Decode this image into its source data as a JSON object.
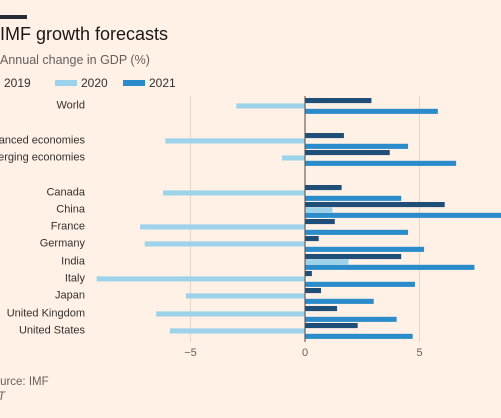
{
  "header": {
    "title": "IMF growth forecasts",
    "subtitle": "Annual change in GDP (%)"
  },
  "legend": [
    {
      "name": "2019",
      "color": "#1f4e79"
    },
    {
      "name": "2020",
      "color": "#9dd3ea"
    },
    {
      "name": "2021",
      "color": "#2b8ccc"
    }
  ],
  "footer": {
    "source": "Source: IMF",
    "brand": "FT"
  },
  "chart_data": {
    "type": "bar",
    "orientation": "horizontal",
    "categories": [
      "World",
      "Advanced economies",
      "Emerging economies",
      "Canada",
      "China",
      "France",
      "Germany",
      "India",
      "Italy",
      "Japan",
      "United Kingdom",
      "United States"
    ],
    "series": [
      {
        "name": "2019",
        "values": [
          2.9,
          1.7,
          3.7,
          1.6,
          6.1,
          1.3,
          0.6,
          4.2,
          0.3,
          0.7,
          1.4,
          2.3
        ]
      },
      {
        "name": "2020",
        "values": [
          -3.0,
          -6.1,
          -1.0,
          -6.2,
          1.2,
          -7.2,
          -7.0,
          1.9,
          -9.1,
          -5.2,
          -6.5,
          -5.9
        ]
      },
      {
        "name": "2021",
        "values": [
          5.8,
          4.5,
          6.6,
          4.2,
          9.2,
          4.5,
          5.2,
          7.4,
          4.8,
          3.0,
          4.0,
          4.7
        ]
      }
    ],
    "xticks": [
      -5,
      0,
      5
    ],
    "xlim": [
      -9.1,
      8.6
    ],
    "colors": {
      "2019": "#1f4e79",
      "2020": "#9dd3ea",
      "2021": "#2b8ccc"
    },
    "gridlines": true,
    "legend_position": "top"
  }
}
